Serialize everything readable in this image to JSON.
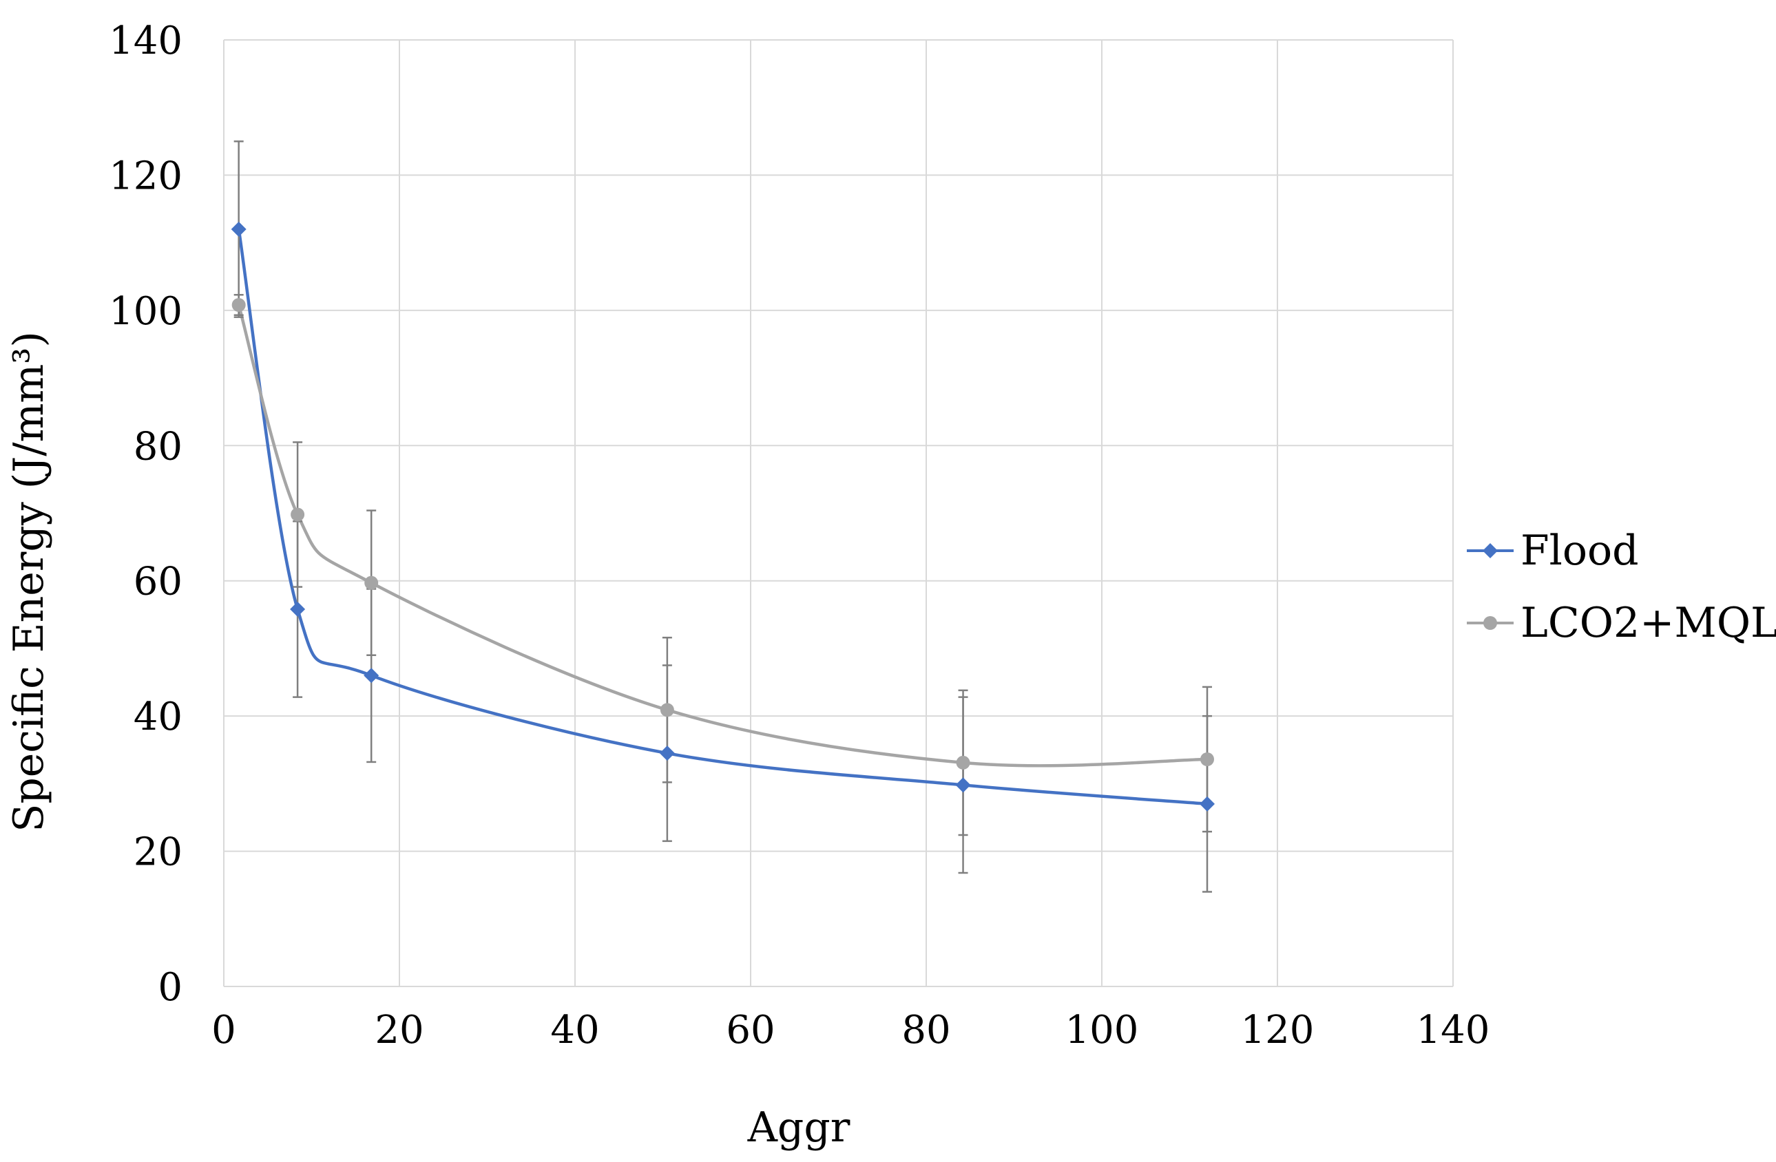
{
  "chart_data": {
    "type": "line",
    "title": "",
    "xlabel": "Aggr",
    "ylabel": "Specific Energy (J/mm³)",
    "xlim": [
      0,
      140
    ],
    "ylim": [
      0,
      140
    ],
    "x_ticks": [
      0,
      20,
      40,
      60,
      80,
      100,
      120,
      140
    ],
    "y_ticks": [
      0,
      20,
      40,
      60,
      80,
      100,
      120,
      140
    ],
    "grid": true,
    "legend_position": "right",
    "series": [
      {
        "name": "Flood",
        "color": "#4472c4",
        "marker": "diamond",
        "points": [
          {
            "x": 1.7,
            "y": 112.0,
            "err": 13.0
          },
          {
            "x": 8.4,
            "y": 55.8,
            "err": 13.0
          },
          {
            "x": 16.8,
            "y": 46.0,
            "err": 12.8
          },
          {
            "x": 50.5,
            "y": 34.5,
            "err": 13.0
          },
          {
            "x": 84.2,
            "y": 29.8,
            "err": 13.0
          },
          {
            "x": 112.0,
            "y": 27.0,
            "err": 13.0
          }
        ]
      },
      {
        "name": "LCO2+MQL",
        "color": "#a5a5a5",
        "marker": "circle",
        "points": [
          {
            "x": 1.7,
            "y": 100.8,
            "err": 1.5
          },
          {
            "x": 8.4,
            "y": 69.8,
            "err": 10.7
          },
          {
            "x": 16.8,
            "y": 59.7,
            "err": 10.7
          },
          {
            "x": 50.5,
            "y": 40.9,
            "err": 10.7
          },
          {
            "x": 84.2,
            "y": 33.1,
            "err": 10.7
          },
          {
            "x": 112.0,
            "y": 33.6,
            "err": 10.7
          }
        ]
      }
    ]
  }
}
